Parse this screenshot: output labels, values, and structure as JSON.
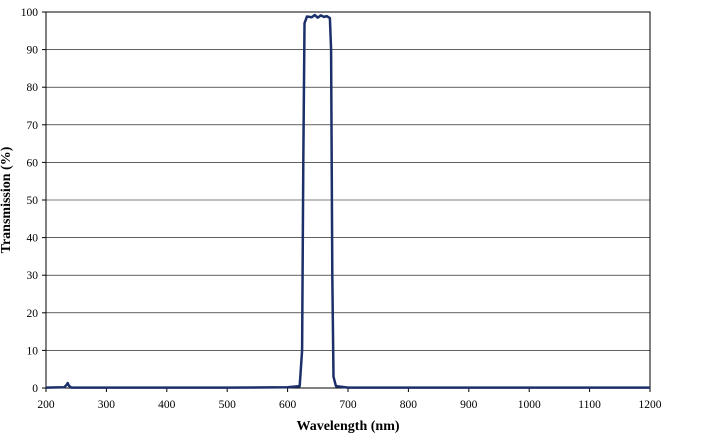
{
  "chart_data": {
    "type": "line",
    "xlabel": "Wavelength (nm)",
    "ylabel": "Transmission (%)",
    "xlim": [
      200,
      1200
    ],
    "ylim": [
      0,
      100
    ],
    "xticks": [
      "200",
      "300",
      "400",
      "500",
      "600",
      "700",
      "800",
      "900",
      "1000",
      "1100",
      "1200"
    ],
    "yticks": [
      "0",
      "10",
      "20",
      "30",
      "40",
      "50",
      "60",
      "70",
      "80",
      "90",
      "100"
    ],
    "grid": "horizontal",
    "legend": "none",
    "series": [
      {
        "color": "#1b2f6b",
        "x": [
          200,
          230,
          234,
          236,
          238,
          242,
          300,
          500,
          600,
          620,
          624,
          626,
          628,
          632,
          640,
          645,
          650,
          655,
          660,
          665,
          670,
          672,
          674,
          676,
          680,
          700,
          800,
          1000,
          1200
        ],
        "y": [
          0.1,
          0.2,
          0.8,
          1.3,
          0.6,
          0.1,
          0.1,
          0.1,
          0.2,
          0.5,
          10,
          60,
          97,
          98.8,
          98.6,
          99.2,
          98.5,
          99.1,
          98.7,
          98.9,
          98.4,
          90,
          30,
          3,
          0.5,
          0.1,
          0.1,
          0.1,
          0.1
        ]
      }
    ]
  }
}
